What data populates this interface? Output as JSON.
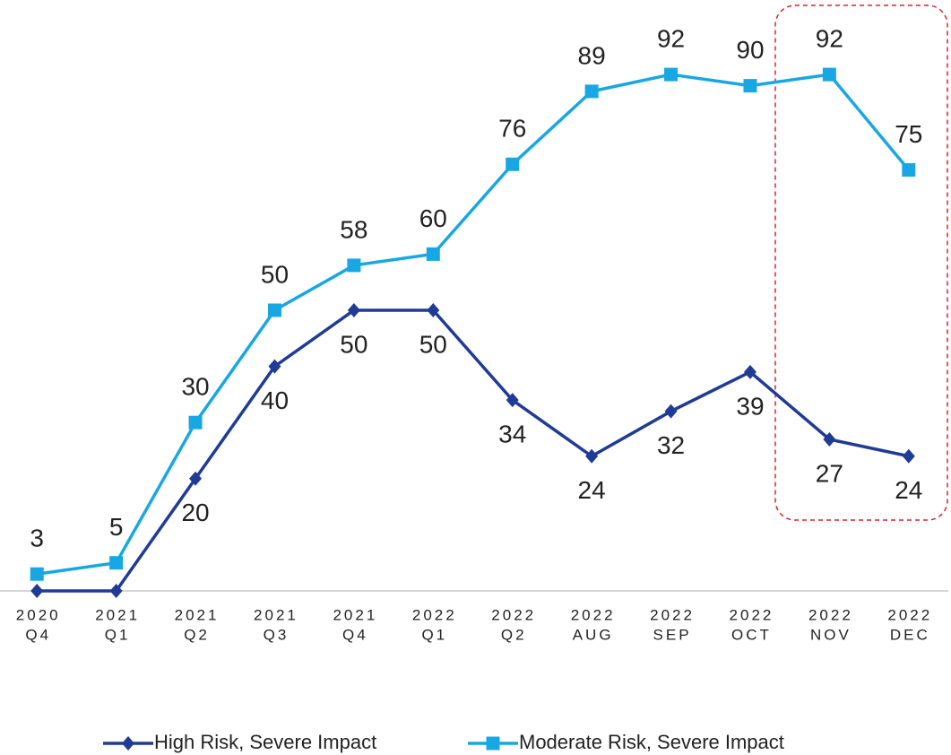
{
  "chart_data": {
    "type": "line",
    "categories": [
      [
        "2020",
        "Q4"
      ],
      [
        "2021",
        "Q1"
      ],
      [
        "2021",
        "Q2"
      ],
      [
        "2021",
        "Q3"
      ],
      [
        "2021",
        "Q4"
      ],
      [
        "2022",
        "Q1"
      ],
      [
        "2022",
        "Q2"
      ],
      [
        "2022",
        "AUG"
      ],
      [
        "2022",
        "SEP"
      ],
      [
        "2022",
        "OCT"
      ],
      [
        "2022",
        "NOV"
      ],
      [
        "2022",
        "DEC"
      ]
    ],
    "series": [
      {
        "name": "High Risk, Severe Impact",
        "color": "#1f3b95",
        "marker": "diamond",
        "label_position": "below",
        "values": [
          0,
          0,
          20,
          40,
          50,
          50,
          34,
          24,
          32,
          39,
          27,
          24
        ],
        "value_labels": [
          null,
          null,
          "20",
          "40",
          "50",
          "50",
          "34",
          "24",
          "32",
          "39",
          "27",
          "24"
        ]
      },
      {
        "name": "Moderate Risk, Severe Impact",
        "color": "#18a7e3",
        "marker": "square",
        "label_position": "above",
        "values": [
          3,
          5,
          30,
          50,
          58,
          60,
          76,
          89,
          92,
          90,
          92,
          75
        ]
      }
    ],
    "ylim": [
      0,
      105
    ],
    "legend": "bottom"
  }
}
